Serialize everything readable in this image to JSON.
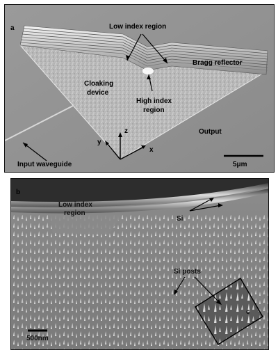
{
  "figure": {
    "panel_a": {
      "letter": "a",
      "labels": {
        "low_index": "Low index region",
        "bragg": "Bragg reflector",
        "cloaking_line1": "Cloaking",
        "cloaking_line2": "device",
        "high_index_line1": "High index",
        "high_index_line2": "region",
        "output": "Output",
        "input": "Input waveguide",
        "scale": "5μm",
        "axis_x": "x",
        "axis_y": "y",
        "axis_z": "z"
      }
    },
    "panel_b": {
      "letter": "b",
      "labels": {
        "low_index_line1": "Low index",
        "low_index_line2": "region",
        "si": "Si",
        "si_posts": "Si posts",
        "inset_letter": "c",
        "scale": "500nm"
      }
    }
  }
}
